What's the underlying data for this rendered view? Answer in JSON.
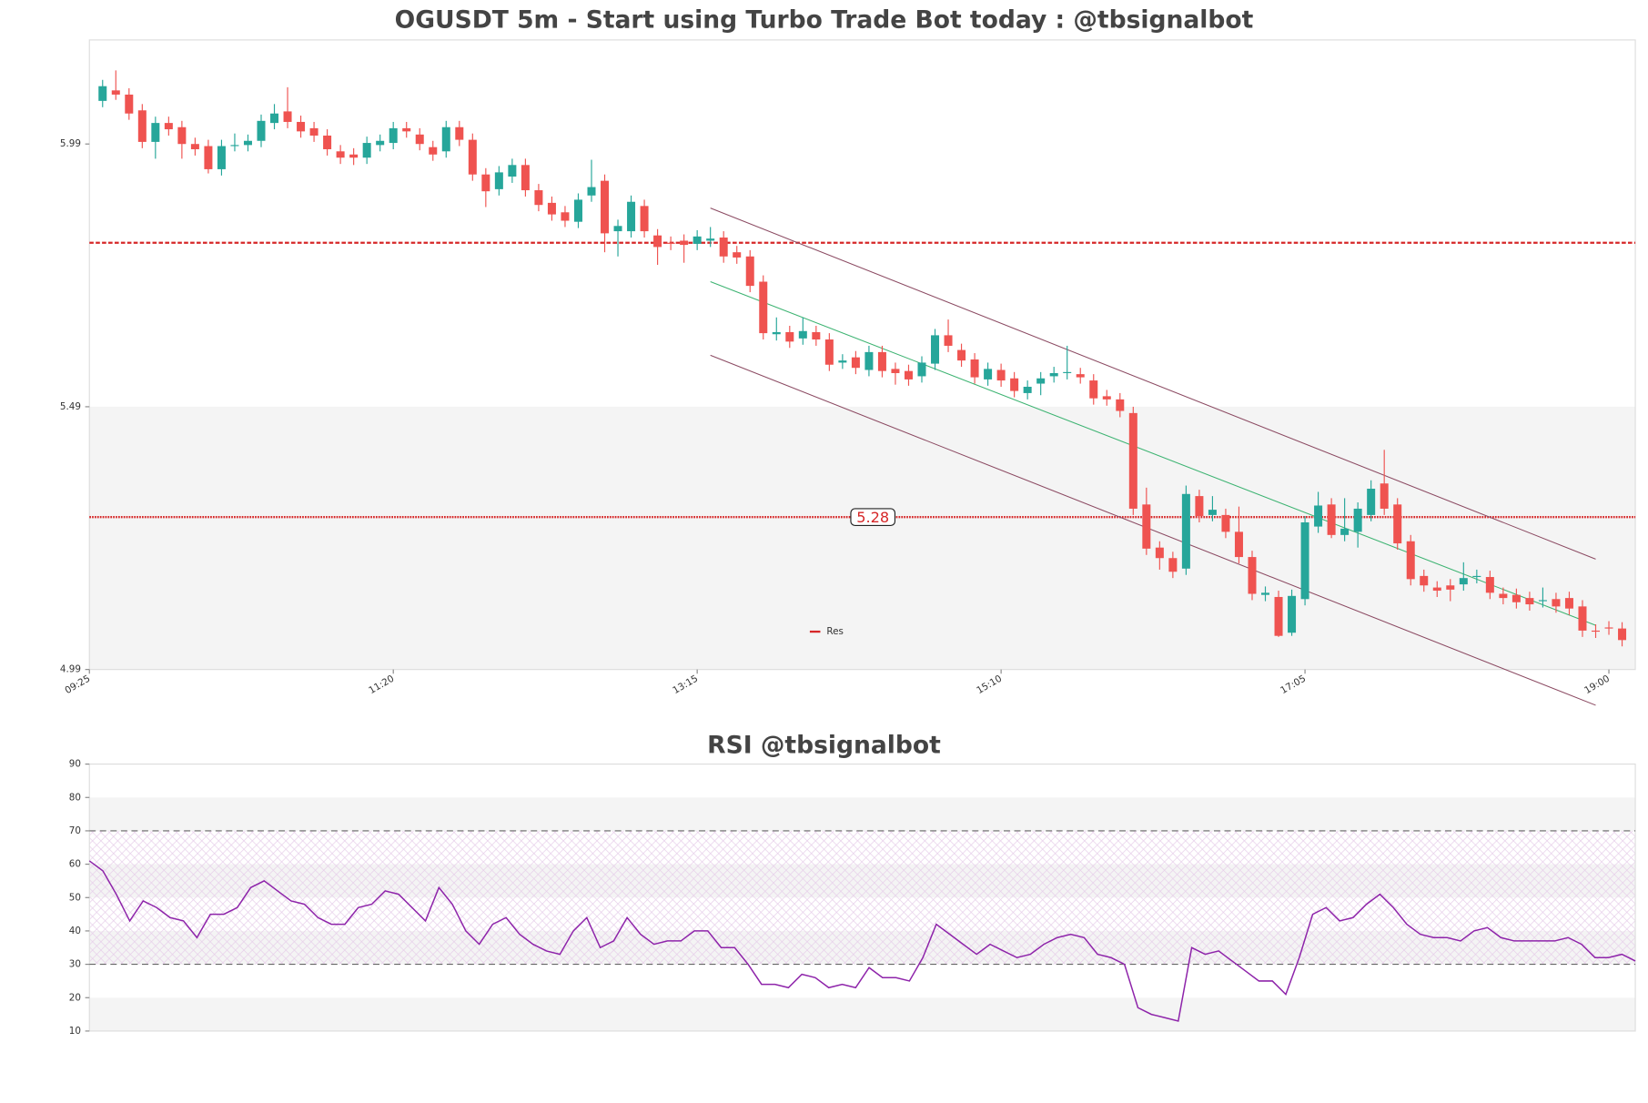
{
  "chart_data": [
    {
      "type": "candlestick",
      "title": "OGUSDT 5m - Start using Turbo Trade Bot today : @tbsignalbot",
      "x": [
        "09:30",
        "09:35",
        "09:40",
        "09:45",
        "09:50",
        "09:55",
        "10:00",
        "10:05",
        "10:10",
        "10:15",
        "10:20",
        "10:25",
        "10:30",
        "10:35",
        "10:40",
        "10:45",
        "10:50",
        "10:55",
        "11:00",
        "11:05",
        "11:10",
        "11:15",
        "11:20",
        "11:25",
        "11:30",
        "11:35",
        "11:40",
        "11:45",
        "11:50",
        "11:55",
        "12:00",
        "12:05",
        "12:10",
        "12:15",
        "12:20",
        "12:25",
        "12:30",
        "12:35",
        "12:40",
        "12:45",
        "12:50",
        "12:55",
        "13:00",
        "13:05",
        "13:10",
        "13:15",
        "13:20",
        "13:25",
        "13:30",
        "13:35",
        "13:40",
        "13:45",
        "13:50",
        "13:55",
        "14:00",
        "14:05",
        "14:10",
        "14:15",
        "14:20",
        "14:25",
        "14:30",
        "14:35",
        "14:40",
        "14:45",
        "14:50",
        "14:55",
        "15:00",
        "15:05",
        "15:10",
        "15:15",
        "15:20",
        "15:25",
        "15:30",
        "15:35",
        "15:40",
        "15:45",
        "15:50",
        "15:55",
        "16:00",
        "16:05",
        "16:10",
        "16:15",
        "16:20",
        "16:25",
        "16:30",
        "16:35",
        "16:40",
        "16:45",
        "16:50",
        "16:55",
        "17:00",
        "17:05",
        "17:10",
        "17:15",
        "17:20",
        "17:25",
        "17:30",
        "17:35",
        "17:40",
        "17:45",
        "17:50",
        "17:55",
        "18:00",
        "18:05",
        "18:10",
        "18:15",
        "18:20",
        "18:25",
        "18:30",
        "18:35",
        "18:40",
        "18:45",
        "18:50",
        "18:55",
        "19:00",
        "19:05"
      ],
      "open": [
        6.072,
        6.092,
        6.084,
        6.054,
        5.994,
        6.03,
        6.022,
        5.99,
        5.986,
        5.942,
        5.986,
        5.988,
        5.996,
        6.03,
        6.052,
        6.032,
        6.02,
        6.006,
        5.976,
        5.97,
        5.964,
        5.988,
        5.992,
        6.02,
        6.008,
        5.984,
        5.976,
        6.022,
        5.998,
        5.932,
        5.904,
        5.928,
        5.95,
        5.902,
        5.878,
        5.86,
        5.842,
        5.892,
        5.92,
        5.824,
        5.824,
        5.872,
        5.816,
        5.802,
        5.806,
        5.8,
        5.806,
        5.812,
        5.784,
        5.776,
        5.728,
        5.628,
        5.632,
        5.62,
        5.632,
        5.618,
        5.574,
        5.584,
        5.56,
        5.594,
        5.562,
        5.558,
        5.548,
        5.572,
        5.626,
        5.598,
        5.58,
        5.542,
        5.56,
        5.544,
        5.516,
        5.534,
        5.548,
        5.554,
        5.552,
        5.54,
        5.51,
        5.504,
        5.478,
        5.304,
        5.222,
        5.202,
        5.182,
        5.32,
        5.284,
        5.284,
        5.252,
        5.204,
        5.132,
        5.128,
        5.06,
        5.124,
        5.262,
        5.304,
        5.246,
        5.252,
        5.284,
        5.344,
        5.304,
        5.234,
        5.168,
        5.146,
        5.15,
        5.152,
        5.166,
        5.166,
        5.134,
        5.132,
        5.126,
        5.12,
        5.124,
        5.126,
        5.11,
        5.064,
        5.07,
        5.068
      ],
      "high": [
        6.112,
        6.13,
        6.096,
        6.066,
        6.042,
        6.042,
        6.034,
        6.002,
        5.998,
        5.998,
        6.01,
        6.008,
        6.046,
        6.066,
        6.098,
        6.044,
        6.032,
        6.018,
        5.988,
        5.982,
        6.004,
        6.008,
        6.032,
        6.032,
        6.02,
        5.996,
        6.034,
        6.034,
        6.01,
        5.944,
        5.948,
        5.962,
        5.962,
        5.914,
        5.89,
        5.872,
        5.896,
        5.96,
        5.932,
        5.846,
        5.892,
        5.884,
        5.828,
        5.814,
        5.818,
        5.826,
        5.832,
        5.824,
        5.796,
        5.788,
        5.74,
        5.66,
        5.644,
        5.66,
        5.644,
        5.63,
        5.59,
        5.596,
        5.606,
        5.606,
        5.574,
        5.57,
        5.586,
        5.638,
        5.656,
        5.61,
        5.592,
        5.574,
        5.572,
        5.556,
        5.54,
        5.556,
        5.566,
        5.606,
        5.564,
        5.552,
        5.522,
        5.516,
        5.49,
        5.336,
        5.234,
        5.214,
        5.34,
        5.332,
        5.32,
        5.296,
        5.3,
        5.216,
        5.148,
        5.14,
        5.142,
        5.282,
        5.328,
        5.316,
        5.316,
        5.308,
        5.35,
        5.408,
        5.316,
        5.246,
        5.18,
        5.158,
        5.162,
        5.194,
        5.18,
        5.178,
        5.146,
        5.144,
        5.138,
        5.146,
        5.136,
        5.138,
        5.122,
        5.076,
        5.082,
        5.08
      ],
      "low": [
        6.06,
        6.074,
        6.036,
        5.982,
        5.962,
        6.006,
        5.962,
        5.968,
        5.934,
        5.93,
        5.976,
        5.976,
        5.984,
        6.018,
        6.02,
        6.002,
        5.994,
        5.968,
        5.952,
        5.95,
        5.952,
        5.976,
        5.98,
        6.002,
        5.978,
        5.958,
        5.964,
        5.986,
        5.92,
        5.87,
        5.892,
        5.916,
        5.89,
        5.862,
        5.844,
        5.832,
        5.83,
        5.88,
        5.784,
        5.776,
        5.812,
        5.812,
        5.76,
        5.788,
        5.764,
        5.788,
        5.794,
        5.764,
        5.762,
        5.708,
        5.618,
        5.616,
        5.602,
        5.608,
        5.606,
        5.558,
        5.562,
        5.552,
        5.548,
        5.546,
        5.532,
        5.53,
        5.536,
        5.56,
        5.594,
        5.566,
        5.534,
        5.53,
        5.528,
        5.508,
        5.504,
        5.512,
        5.536,
        5.542,
        5.534,
        5.494,
        5.492,
        5.47,
        5.284,
        5.208,
        5.18,
        5.164,
        5.17,
        5.27,
        5.272,
        5.24,
        5.192,
        5.122,
        5.12,
        5.052,
        5.054,
        5.112,
        5.25,
        5.24,
        5.234,
        5.222,
        5.272,
        5.284,
        5.218,
        5.15,
        5.138,
        5.128,
        5.12,
        5.14,
        5.154,
        5.124,
        5.114,
        5.106,
        5.102,
        5.108,
        5.098,
        5.094,
        5.052,
        5.05,
        5.056,
        5.034
      ],
      "close": [
        6.1,
        6.084,
        6.048,
        5.994,
        6.03,
        6.018,
        5.99,
        5.98,
        5.942,
        5.986,
        5.988,
        5.996,
        6.034,
        6.048,
        6.032,
        6.014,
        6.006,
        5.98,
        5.964,
        5.964,
        5.992,
        5.996,
        6.02,
        6.014,
        5.99,
        5.97,
        6.022,
        5.998,
        5.932,
        5.9,
        5.936,
        5.95,
        5.902,
        5.874,
        5.856,
        5.844,
        5.884,
        5.908,
        5.82,
        5.834,
        5.88,
        5.824,
        5.794,
        5.8,
        5.798,
        5.814,
        5.81,
        5.776,
        5.774,
        5.72,
        5.63,
        5.632,
        5.614,
        5.634,
        5.618,
        5.57,
        5.578,
        5.564,
        5.594,
        5.558,
        5.554,
        5.542,
        5.574,
        5.626,
        5.606,
        5.578,
        5.546,
        5.562,
        5.54,
        5.52,
        5.528,
        5.544,
        5.554,
        5.556,
        5.546,
        5.506,
        5.504,
        5.482,
        5.296,
        5.22,
        5.202,
        5.176,
        5.324,
        5.282,
        5.294,
        5.252,
        5.204,
        5.134,
        5.136,
        5.054,
        5.13,
        5.27,
        5.302,
        5.246,
        5.258,
        5.296,
        5.334,
        5.296,
        5.23,
        5.162,
        5.15,
        5.14,
        5.142,
        5.164,
        5.168,
        5.136,
        5.126,
        5.118,
        5.114,
        5.122,
        5.11,
        5.106,
        5.064,
        5.062,
        5.068,
        5.046
      ],
      "up_color": "#26a69a",
      "down_color": "#ef5350",
      "xlim": [
        "09:25",
        "19:10"
      ],
      "xticks": [
        "09:25",
        "11:20",
        "13:15",
        "15:10",
        "17:05",
        "19:00"
      ],
      "ylim": [
        4.99,
        6.188
      ],
      "yticks": [
        4.99,
        5.49,
        5.99
      ],
      "levels": {
        "name": "Res",
        "color": "#d62728",
        "values": [
          5.28,
          5.802
        ],
        "labeled": [
          true,
          false
        ]
      },
      "lines": [
        {
          "x": [
            "13:20",
            "18:55"
          ],
          "values": [
            5.868,
            5.2
          ],
          "color": "#8b4a62"
        },
        {
          "x": [
            "13:20",
            "18:55"
          ],
          "values": [
            5.728,
            5.074
          ],
          "color": "#3cb371"
        },
        {
          "x": [
            "13:20",
            "18:55"
          ],
          "values": [
            5.588,
            4.922
          ],
          "color": "#8b4a62"
        }
      ],
      "legend": "lower center"
    },
    {
      "type": "line",
      "title": "RSI @tbsignalbot",
      "values": [
        61,
        58,
        51,
        43,
        49,
        47,
        44,
        43,
        38,
        45,
        45,
        47,
        53,
        55,
        52,
        49,
        48,
        44,
        42,
        42,
        47,
        48,
        52,
        51,
        47,
        43,
        53,
        48,
        40,
        36,
        42,
        44,
        39,
        36,
        34,
        33,
        40,
        44,
        35,
        37,
        44,
        39,
        36,
        37,
        37,
        40,
        40,
        35,
        35,
        30,
        24,
        24,
        23,
        27,
        26,
        23,
        24,
        23,
        29,
        26,
        26,
        25,
        32,
        42,
        39,
        36,
        33,
        36,
        34,
        32,
        33,
        36,
        38,
        39,
        38,
        33,
        32,
        30,
        17,
        15,
        14,
        13,
        35,
        33,
        34,
        31,
        28,
        25,
        25,
        21,
        32,
        45,
        47,
        43,
        44,
        48,
        51,
        47,
        42,
        39,
        38,
        38,
        37,
        40,
        41,
        38,
        37,
        37,
        37,
        37,
        38,
        36,
        32,
        32,
        33,
        31
      ],
      "color": "#8e24aa",
      "ylim": [
        10,
        90
      ],
      "yticks": [
        10,
        20,
        30,
        40,
        50,
        60,
        70,
        80,
        90
      ],
      "hlines": [
        30,
        70
      ]
    }
  ]
}
